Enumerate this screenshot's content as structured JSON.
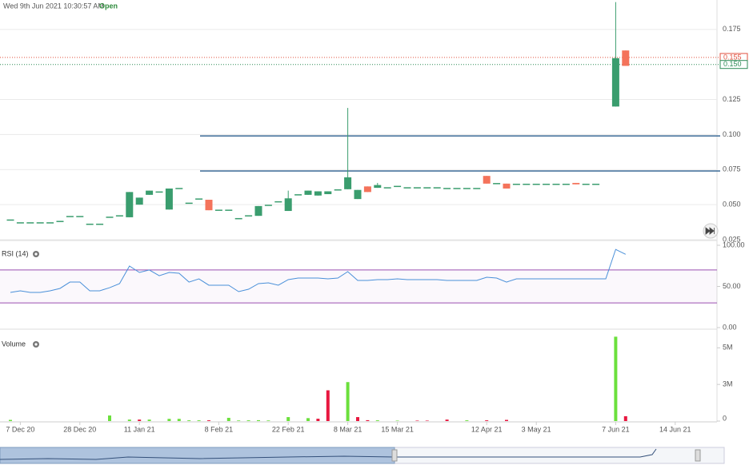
{
  "header": {
    "timestamp": "Wed 9th Jun 2021 10:30:57 AM",
    "status": "Open"
  },
  "chart_data": [
    {
      "type": "candlestick",
      "up_color": "#3a9d6e",
      "down_color": "#f4735b",
      "ylim": [
        0.025,
        0.196
      ],
      "yticks": [
        0.025,
        {
          "value": 0.05,
          "label": "0.050"
        },
        0.075,
        {
          "value": 0.1,
          "label": "0.100"
        },
        0.125,
        0.175
      ],
      "grid": true,
      "open": [
        0.039,
        0.037,
        0.037,
        0.037,
        0.037,
        0.038,
        0.0415,
        0.0415,
        0.036,
        0.036,
        0.041,
        0.042,
        0.041,
        0.05,
        0.057,
        0.059,
        0.0465,
        0.0615,
        0.051,
        0.054,
        0.0535,
        0.046,
        0.046,
        0.04,
        0.042,
        0.042,
        0.0495,
        0.052,
        0.0455,
        0.057,
        0.057,
        0.0565,
        0.0575,
        0.0605,
        0.061,
        0.054,
        0.063,
        0.062,
        0.062,
        0.063,
        0.062,
        0.062,
        0.062,
        0.062,
        0.0615,
        0.0615,
        0.0615,
        0.0615,
        0.0705,
        0.065,
        0.065,
        0.0645,
        0.0645,
        0.0645,
        0.0645,
        0.0645,
        0.0645,
        0.0655,
        0.0645,
        0.0645,
        null,
        0.12,
        0.16,
        null,
        null,
        null,
        null,
        null,
        null,
        null,
        null,
        null
      ],
      "close": [
        0.039,
        0.037,
        0.037,
        0.037,
        0.037,
        0.038,
        0.0415,
        0.0415,
        0.036,
        0.036,
        0.041,
        0.042,
        0.059,
        0.055,
        0.06,
        0.059,
        0.0615,
        0.0615,
        0.051,
        0.054,
        0.046,
        0.046,
        0.046,
        0.04,
        0.042,
        0.049,
        0.0495,
        0.052,
        0.0545,
        0.057,
        0.06,
        0.0595,
        0.0595,
        0.0605,
        0.0695,
        0.0605,
        0.059,
        0.064,
        0.062,
        0.063,
        0.062,
        0.062,
        0.062,
        0.062,
        0.0615,
        0.0615,
        0.0615,
        0.0615,
        0.065,
        0.065,
        0.0615,
        0.0645,
        0.0645,
        0.0645,
        0.0645,
        0.0645,
        0.0645,
        0.0645,
        0.0645,
        0.0645,
        null,
        0.1545,
        0.149,
        null,
        null,
        null,
        null,
        null,
        null,
        null,
        null,
        null
      ],
      "high": [
        0.039,
        0.037,
        0.037,
        0.037,
        0.037,
        0.038,
        0.0415,
        0.0415,
        0.036,
        0.036,
        0.041,
        0.042,
        0.059,
        0.055,
        0.06,
        0.059,
        0.0615,
        0.0615,
        0.051,
        0.054,
        0.0535,
        0.046,
        0.046,
        0.04,
        0.042,
        0.049,
        0.0495,
        0.052,
        0.06,
        0.057,
        0.06,
        0.0595,
        0.0595,
        0.0605,
        0.119,
        0.0605,
        0.063,
        0.0655,
        0.062,
        0.063,
        0.062,
        0.062,
        0.062,
        0.062,
        0.0615,
        0.0615,
        0.0615,
        0.0615,
        0.0705,
        0.065,
        0.065,
        0.0645,
        0.0645,
        0.0645,
        0.0645,
        0.0645,
        0.0645,
        0.0655,
        0.0645,
        0.0645,
        null,
        0.1945,
        0.16,
        null,
        null,
        null,
        null,
        null,
        null,
        null,
        null,
        null
      ],
      "low": [
        0.039,
        0.037,
        0.037,
        0.037,
        0.037,
        0.038,
        0.0415,
        0.0415,
        0.036,
        0.036,
        0.041,
        0.042,
        0.041,
        0.05,
        0.057,
        0.059,
        0.0465,
        0.0615,
        0.051,
        0.054,
        0.046,
        0.046,
        0.046,
        0.04,
        0.042,
        0.042,
        0.0495,
        0.052,
        0.0455,
        0.057,
        0.057,
        0.0565,
        0.0575,
        0.0605,
        0.061,
        0.054,
        0.059,
        0.062,
        0.062,
        0.063,
        0.062,
        0.062,
        0.062,
        0.062,
        0.0615,
        0.0615,
        0.0615,
        0.0615,
        0.065,
        0.065,
        0.0615,
        0.0645,
        0.0645,
        0.0645,
        0.0645,
        0.0645,
        0.0645,
        0.0645,
        0.0645,
        0.0645,
        null,
        0.12,
        0.149,
        null,
        null,
        null,
        null,
        null,
        null,
        null,
        null,
        null
      ],
      "levels": [
        0.099,
        0.074
      ],
      "level_color": "#3c6a96",
      "price_markers": [
        {
          "value": 0.155,
          "label": "0.155",
          "color": "#e0503f"
        },
        {
          "value": 0.15,
          "label": "0.150",
          "color": "#2e8b57"
        }
      ]
    },
    {
      "type": "line",
      "title": "RSI (14)",
      "color": "#4a90d9",
      "ylim": [
        0,
        100
      ],
      "yticks": [
        {
          "value": 0,
          "label": "0.00"
        },
        {
          "value": 50,
          "label": "50.00"
        },
        {
          "value": 100,
          "label": "100.00"
        }
      ],
      "bands": [
        30,
        70
      ],
      "band_color": "#9b4fb0",
      "values": [
        42.7,
        44.7,
        42.7,
        42.7,
        44.7,
        47.6,
        55.3,
        55.3,
        44.7,
        44.7,
        48.5,
        53.4,
        74.8,
        67,
        70,
        63,
        67,
        66,
        55.3,
        59.2,
        51.5,
        51.5,
        51.5,
        43.7,
        46.6,
        53.4,
        54.4,
        51.5,
        58.3,
        60.2,
        60.2,
        60.2,
        59.2,
        60.2,
        68,
        57.3,
        57.3,
        58.3,
        58.3,
        59.2,
        58.3,
        58.3,
        58.3,
        58.3,
        57.3,
        57.3,
        57.3,
        57.3,
        61.2,
        60.2,
        55.3,
        59.2,
        59.2,
        59.2,
        59.2,
        59.2,
        59.2,
        59.2,
        59.2,
        59.2,
        59.2,
        95,
        89,
        null,
        null,
        null,
        null,
        null,
        null,
        null,
        null,
        null
      ]
    },
    {
      "type": "bar",
      "title": "Volume",
      "ylim": [
        0,
        6000000
      ],
      "yticks": [
        0,
        {
          "value": 2500000,
          "label": "3M"
        },
        {
          "value": 5000000,
          "label": "5M"
        }
      ],
      "categories": [
        null,
        "7 Dec 20",
        null,
        null,
        null,
        null,
        null,
        "28 Dec 20",
        null,
        null,
        null,
        null,
        null,
        "11 Jan 21",
        null,
        null,
        null,
        null,
        null,
        null,
        null,
        "8 Feb 21",
        null,
        null,
        null,
        null,
        null,
        null,
        "22 Feb 21",
        null,
        null,
        null,
        null,
        null,
        "8 Mar 21",
        null,
        null,
        null,
        null,
        "15 Mar 21",
        null,
        null,
        null,
        null,
        null,
        null,
        null,
        null,
        "12 Apr 21",
        null,
        null,
        null,
        null,
        "3 May 21",
        null,
        null,
        null,
        null,
        null,
        null,
        null,
        "7 Jun 21",
        null,
        null,
        null,
        null,
        null,
        "14 Jun 21",
        null,
        null,
        null,
        null
      ],
      "values": [
        80000,
        null,
        null,
        null,
        null,
        null,
        null,
        null,
        null,
        null,
        380000,
        null,
        100000,
        100000,
        100000,
        null,
        150000,
        150000,
        50000,
        50000,
        50000,
        null,
        220000,
        40000,
        50000,
        60000,
        40000,
        null,
        270000,
        null,
        200000,
        160000,
        2100000,
        null,
        2660000,
        270000,
        60000,
        50000,
        null,
        30000,
        null,
        30000,
        30000,
        null,
        100000,
        null,
        50000,
        null,
        50000,
        null,
        80000,
        null,
        null,
        null,
        null,
        null,
        null,
        null,
        null,
        null,
        null,
        5760000,
        330000,
        null,
        null,
        null,
        null,
        null,
        null,
        null,
        null,
        null
      ],
      "colors": [
        "#6be03c",
        null,
        null,
        null,
        null,
        null,
        null,
        null,
        null,
        null,
        "#6be03c",
        null,
        "#6be03c",
        "#e8173f",
        "#6be03c",
        null,
        "#6be03c",
        "#6be03c",
        "#6be03c",
        "#6be03c",
        "#e8173f",
        null,
        "#6be03c",
        "#6be03c",
        "#6be03c",
        "#6be03c",
        "#6be03c",
        null,
        "#6be03c",
        null,
        "#6be03c",
        "#e8173f",
        "#e8173f",
        null,
        "#6be03c",
        "#e8173f",
        "#e8173f",
        "#6be03c",
        null,
        "#6be03c",
        null,
        "#e8173f",
        "#e8173f",
        null,
        "#e8173f",
        null,
        "#6be03c",
        null,
        "#e8173f",
        null,
        "#e8173f",
        null,
        null,
        null,
        null,
        null,
        null,
        null,
        null,
        null,
        null,
        "#6be03c",
        "#e8173f",
        null,
        null,
        null,
        null,
        null,
        null,
        null,
        null,
        null
      ]
    }
  ]
}
